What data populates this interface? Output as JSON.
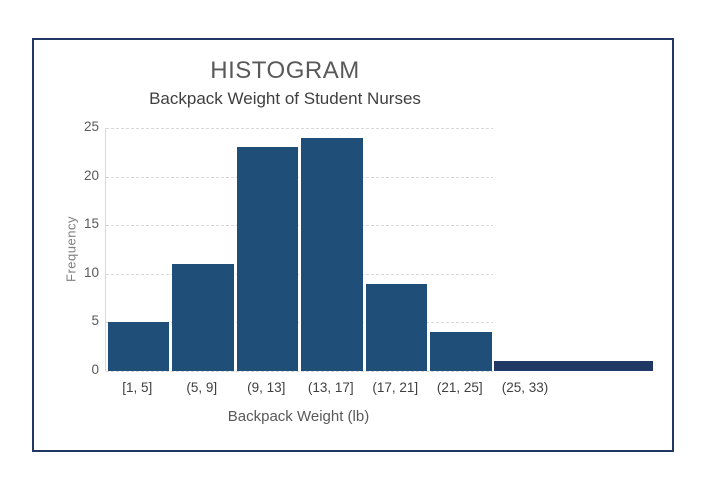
{
  "chart_data": {
    "type": "bar",
    "chart_kind": "histogram",
    "title": "HISTOGRAM",
    "subtitle": "Backpack Weight of Student Nurses",
    "xlabel": "Backpack Weight (lb)",
    "ylabel": "Frequency",
    "categories": [
      "[1, 5]",
      "(5, 9]",
      "(9, 13]",
      "(13, 17]",
      "(17, 21]",
      "(21, 25]",
      "(25, 33)"
    ],
    "values": [
      5,
      11,
      23,
      24,
      9,
      4,
      1
    ],
    "ylim": [
      0,
      25
    ],
    "yticks": [
      0,
      5,
      10,
      15,
      20,
      25
    ],
    "grid": "horizontal-dashed",
    "legend": "none",
    "layout_hints": {
      "last_bar_double_width": true,
      "last_bar_extends_right_of_plot": true,
      "outer_frame_border": true
    },
    "colors": {
      "bar_fill": "#1F4E79",
      "last_bar_fill": "#1F3864",
      "frame_border": "#1F3864",
      "gridline": "#D9D9D9",
      "axis_line": "#D9D9D9",
      "title_text": "#595959",
      "subtitle_text": "#404040",
      "x_tick_text": "#404040",
      "y_tick_text": "#595959",
      "axis_title_text": "#595959"
    }
  }
}
